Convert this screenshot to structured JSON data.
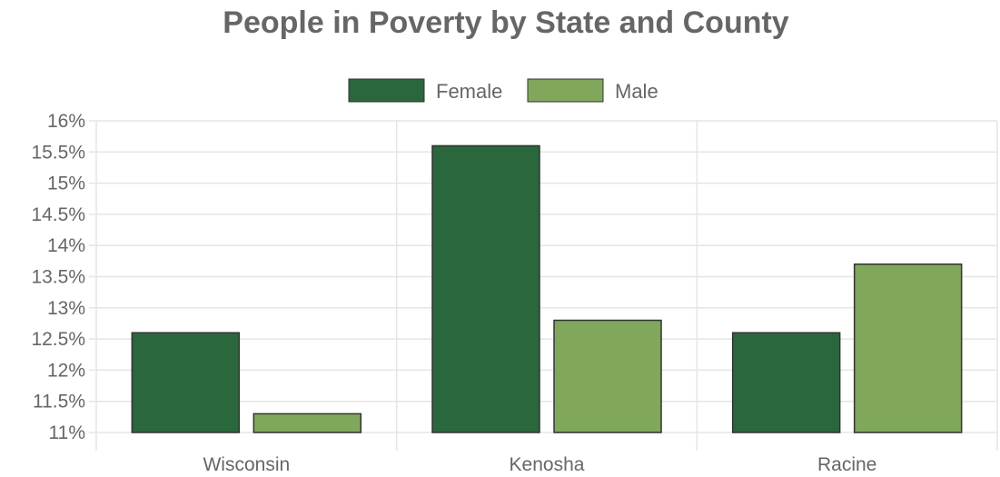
{
  "chart_data": {
    "type": "bar",
    "title": "People in Poverty by State and County",
    "categories": [
      "Wisconsin",
      "Kenosha",
      "Racine"
    ],
    "series": [
      {
        "name": "Female",
        "values": [
          12.6,
          15.6,
          12.6
        ],
        "color": "#2a673d"
      },
      {
        "name": "Male",
        "values": [
          11.3,
          12.8,
          13.7
        ],
        "color": "#80a75c"
      }
    ],
    "ylim": [
      11,
      16
    ],
    "yticks": [
      "11%",
      "11.5%",
      "12%",
      "12.5%",
      "13%",
      "13.5%",
      "14%",
      "14.5%",
      "15%",
      "15.5%",
      "16%"
    ],
    "ytick_values": [
      11,
      11.5,
      12,
      12.5,
      13,
      13.5,
      14,
      14.5,
      15,
      15.5,
      16
    ],
    "grid": true,
    "legend_position": "top-center",
    "colors": {
      "grid": "#e5e5e5",
      "text": "#666666",
      "bar_stroke": "#333333"
    }
  }
}
